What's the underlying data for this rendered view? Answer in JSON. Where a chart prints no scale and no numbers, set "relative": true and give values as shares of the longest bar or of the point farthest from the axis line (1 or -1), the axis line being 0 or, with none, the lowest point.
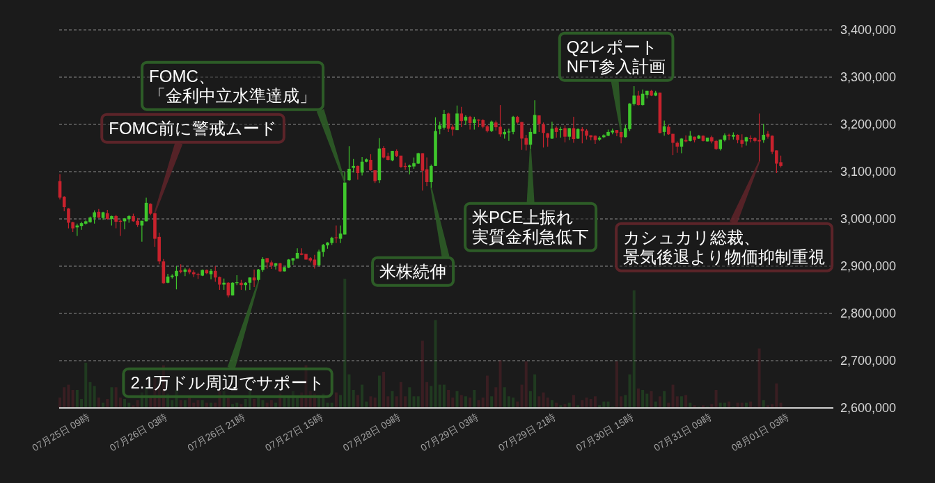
{
  "chart_data": [
    {
      "type": "candlestick",
      "x": [
        "--07-25T02:00",
        "--07-25T03:00",
        "--07-25T04:00",
        "--07-25T05:00",
        "--07-25T06:00",
        "--07-25T07:00",
        "--07-25T08:00",
        "--07-25T09:00",
        "--07-25T10:00",
        "--07-25T11:00",
        "--07-25T12:00",
        "--07-25T13:00",
        "--07-25T14:00",
        "--07-25T15:00",
        "--07-25T16:00",
        "--07-25T17:00",
        "--07-25T18:00",
        "--07-25T19:00",
        "--07-25T20:00",
        "--07-25T21:00",
        "--07-25T22:00",
        "--07-25T23:00",
        "--07-26T00:00",
        "--07-26T01:00",
        "--07-26T02:00",
        "--07-26T03:00",
        "--07-26T04:00",
        "--07-26T05:00",
        "--07-26T06:00",
        "--07-26T07:00",
        "--07-26T08:00",
        "--07-26T09:00",
        "--07-26T10:00",
        "--07-26T11:00",
        "--07-26T12:00",
        "--07-26T13:00",
        "--07-26T14:00",
        "--07-26T15:00",
        "--07-26T16:00",
        "--07-26T17:00",
        "--07-26T18:00",
        "--07-26T19:00",
        "--07-26T20:00",
        "--07-26T21:00",
        "--07-26T22:00",
        "--07-26T23:00",
        "--07-27T00:00",
        "--07-27T01:00",
        "--07-27T02:00",
        "--07-27T03:00",
        "--07-27T04:00",
        "--07-27T05:00",
        "--07-27T06:00",
        "--07-27T07:00",
        "--07-27T08:00",
        "--07-27T09:00",
        "--07-27T10:00",
        "--07-27T11:00",
        "--07-27T12:00",
        "--07-27T13:00",
        "--07-27T14:00",
        "--07-27T15:00",
        "--07-27T16:00",
        "--07-27T17:00",
        "--07-27T18:00",
        "--07-27T19:00",
        "--07-27T20:00",
        "--07-27T21:00",
        "--07-27T22:00",
        "--07-27T23:00",
        "--07-28T00:00",
        "--07-28T01:00",
        "--07-28T02:00",
        "--07-28T03:00",
        "--07-28T04:00",
        "--07-28T05:00",
        "--07-28T06:00",
        "--07-28T07:00",
        "--07-28T08:00",
        "--07-28T09:00",
        "--07-28T10:00",
        "--07-28T11:00",
        "--07-28T12:00",
        "--07-28T13:00",
        "--07-28T14:00",
        "--07-28T15:00",
        "--07-28T16:00",
        "--07-28T17:00",
        "--07-28T18:00",
        "--07-28T19:00",
        "--07-28T20:00",
        "--07-28T21:00",
        "--07-28T22:00",
        "--07-28T23:00",
        "--07-29T00:00",
        "--07-29T01:00",
        "--07-29T02:00",
        "--07-29T03:00",
        "--07-29T04:00",
        "--07-29T05:00",
        "--07-29T06:00",
        "--07-29T07:00",
        "--07-29T08:00",
        "--07-29T09:00",
        "--07-29T10:00",
        "--07-29T11:00",
        "--07-29T12:00",
        "--07-29T13:00",
        "--07-29T14:00",
        "--07-29T15:00",
        "--07-29T16:00",
        "--07-29T17:00",
        "--07-29T18:00",
        "--07-29T19:00",
        "--07-29T20:00",
        "--07-29T21:00",
        "--07-29T22:00",
        "--07-29T23:00",
        "--07-30T00:00",
        "--07-30T01:00",
        "--07-30T02:00",
        "--07-30T03:00",
        "--07-30T04:00",
        "--07-30T05:00",
        "--07-30T06:00",
        "--07-30T07:00",
        "--07-30T08:00",
        "--07-30T09:00",
        "--07-30T10:00",
        "--07-30T11:00",
        "--07-30T12:00",
        "--07-30T13:00",
        "--07-30T14:00",
        "--07-30T15:00",
        "--07-30T16:00",
        "--07-30T17:00",
        "--07-30T18:00",
        "--07-30T19:00",
        "--07-30T20:00",
        "--07-30T21:00",
        "--07-30T22:00",
        "--07-30T23:00",
        "--07-31T00:00",
        "--07-31T01:00",
        "--07-31T02:00",
        "--07-31T03:00",
        "--07-31T04:00",
        "--07-31T05:00",
        "--07-31T06:00",
        "--07-31T07:00",
        "--07-31T08:00",
        "--07-31T09:00",
        "--07-31T10:00",
        "--07-31T11:00",
        "--07-31T12:00",
        "--07-31T13:00",
        "--07-31T14:00",
        "--07-31T15:00",
        "--07-31T16:00",
        "--07-31T17:00",
        "--07-31T18:00",
        "--07-31T19:00",
        "--07-31T20:00",
        "--07-31T21:00",
        "--07-31T22:00",
        "--07-31T23:00",
        "--08-01T00:00",
        "--08-01T01:00"
      ],
      "ohlc": [
        [
          3080000,
          3095000,
          3041000,
          3045000
        ],
        [
          3047000,
          3048000,
          3016000,
          3025000
        ],
        [
          3022000,
          3023000,
          2980000,
          2992000
        ],
        [
          2993000,
          2994000,
          2972000,
          2980000
        ],
        [
          2982000,
          2990000,
          2964000,
          2986000
        ],
        [
          2985000,
          2994000,
          2977000,
          2991000
        ],
        [
          2990000,
          2997000,
          2988000,
          2995000
        ],
        [
          2993000,
          3005000,
          2992000,
          3003000
        ],
        [
          3003000,
          3018000,
          2990000,
          3014000
        ],
        [
          3015000,
          3021000,
          3002000,
          3003000
        ],
        [
          3002000,
          3015000,
          2998000,
          3014000
        ],
        [
          3012000,
          3019000,
          2998000,
          3000000
        ],
        [
          3000000,
          3007000,
          2986000,
          3006000
        ],
        [
          3006000,
          3009000,
          2980000,
          2994000
        ],
        [
          2996000,
          2998000,
          2964000,
          2994000
        ],
        [
          2995000,
          3002000,
          2978000,
          3001000
        ],
        [
          3000000,
          3008000,
          2992000,
          3006000
        ],
        [
          3006000,
          3011000,
          2994000,
          2995000
        ],
        [
          2996000,
          3002000,
          2983000,
          2987000
        ],
        [
          2986000,
          2996000,
          2952000,
          2996000
        ],
        [
          2995000,
          3045000,
          2995000,
          3034000
        ],
        [
          3032000,
          3033000,
          3008000,
          3011000
        ],
        [
          3012000,
          3013000,
          2941000,
          2958000
        ],
        [
          2962000,
          2971000,
          2904000,
          2910000
        ],
        [
          2910000,
          2915000,
          2863000,
          2864000
        ],
        [
          2865000,
          2884000,
          2864000,
          2878000
        ],
        [
          2877000,
          2883000,
          2874000,
          2880000
        ],
        [
          2879000,
          2900000,
          2851000,
          2890000
        ],
        [
          2891000,
          2904000,
          2885000,
          2888000
        ],
        [
          2888000,
          2896000,
          2879000,
          2893000
        ],
        [
          2893000,
          2896000,
          2883000,
          2887000
        ],
        [
          2887000,
          2891000,
          2877000,
          2883000
        ],
        [
          2883000,
          2886000,
          2873000,
          2882000
        ],
        [
          2880000,
          2893000,
          2879000,
          2892000
        ],
        [
          2892000,
          2893000,
          2883000,
          2885000
        ],
        [
          2883000,
          2894000,
          2872000,
          2890000
        ],
        [
          2890000,
          2900000,
          2867000,
          2876000
        ],
        [
          2877000,
          2878000,
          2850000,
          2861000
        ],
        [
          2861000,
          2874000,
          2850000,
          2865000
        ],
        [
          2865000,
          2866000,
          2834000,
          2838000
        ],
        [
          2838000,
          2866000,
          2838000,
          2865000
        ],
        [
          2865000,
          2881000,
          2860000,
          2866000
        ],
        [
          2865000,
          2871000,
          2850000,
          2860000
        ],
        [
          2860000,
          2866000,
          2849000,
          2865000
        ],
        [
          2865000,
          2876000,
          2850000,
          2876000
        ],
        [
          2876000,
          2893000,
          2856000,
          2870000
        ],
        [
          2871000,
          2894000,
          2868000,
          2893000
        ],
        [
          2892000,
          2919000,
          2888000,
          2915000
        ],
        [
          2917000,
          2917000,
          2895000,
          2908000
        ],
        [
          2908000,
          2912000,
          2894000,
          2901000
        ],
        [
          2901000,
          2907000,
          2893000,
          2906000
        ],
        [
          2906000,
          2907000,
          2888000,
          2889000
        ],
        [
          2889000,
          2898000,
          2889000,
          2898000
        ],
        [
          2897000,
          2915000,
          2896000,
          2914000
        ],
        [
          2912000,
          2917000,
          2903000,
          2917000
        ],
        [
          2916000,
          2938000,
          2916000,
          2928000
        ],
        [
          2927000,
          2938000,
          2923000,
          2924000
        ],
        [
          2926000,
          2926000,
          2914000,
          2914000
        ],
        [
          2917000,
          2919000,
          2908000,
          2912000
        ],
        [
          2914000,
          2924000,
          2895000,
          2902000
        ],
        [
          2902000,
          2935000,
          2900000,
          2931000
        ],
        [
          2930000,
          2947000,
          2920000,
          2945000
        ],
        [
          2944000,
          2951000,
          2937000,
          2950000
        ],
        [
          2949000,
          2962000,
          2945000,
          2960000
        ],
        [
          2961000,
          2986000,
          2949000,
          2960000
        ],
        [
          2958000,
          2986000,
          2949000,
          2969000
        ],
        [
          2967000,
          3100000,
          2967000,
          3077000
        ],
        [
          3082000,
          3154000,
          3081000,
          3106000
        ],
        [
          3108000,
          3127000,
          3098000,
          3112000
        ],
        [
          3112000,
          3113000,
          3083000,
          3097000
        ],
        [
          3098000,
          3131000,
          3092000,
          3121000
        ],
        [
          3121000,
          3128000,
          3120000,
          3126000
        ],
        [
          3125000,
          3137000,
          3102000,
          3103000
        ],
        [
          3103000,
          3103000,
          3076000,
          3080000
        ],
        [
          3082000,
          3171000,
          3076000,
          3149000
        ],
        [
          3150000,
          3154000,
          3128000,
          3130000
        ],
        [
          3133000,
          3140000,
          3124000,
          3125000
        ],
        [
          3124000,
          3144000,
          3122000,
          3144000
        ],
        [
          3144000,
          3147000,
          3131000,
          3133000
        ],
        [
          3134000,
          3134000,
          3108000,
          3110000
        ],
        [
          3112000,
          3119000,
          3104000,
          3110000
        ],
        [
          3110000,
          3115000,
          3094000,
          3113000
        ],
        [
          3111000,
          3130000,
          3106000,
          3118000
        ],
        [
          3117000,
          3140000,
          3116000,
          3139000
        ],
        [
          3139000,
          3139000,
          3060000,
          3102000
        ],
        [
          3105000,
          3130000,
          3069000,
          3078000
        ],
        [
          3078000,
          3115000,
          3066000,
          3112000
        ],
        [
          3112000,
          3215000,
          3112000,
          3186000
        ],
        [
          3190000,
          3206000,
          3179000,
          3198000
        ],
        [
          3193000,
          3231000,
          3189000,
          3222000
        ],
        [
          3223000,
          3225000,
          3184000,
          3191000
        ],
        [
          3195000,
          3200000,
          3176000,
          3189000
        ],
        [
          3188000,
          3240000,
          3188000,
          3223000
        ],
        [
          3223000,
          3237000,
          3194000,
          3207000
        ],
        [
          3208000,
          3219000,
          3199000,
          3216000
        ],
        [
          3216000,
          3218000,
          3189000,
          3203000
        ],
        [
          3203000,
          3216000,
          3189000,
          3211000
        ],
        [
          3210000,
          3211000,
          3194000,
          3208000
        ],
        [
          3209000,
          3211000,
          3192000,
          3195000
        ],
        [
          3196000,
          3199000,
          3183000,
          3186000
        ],
        [
          3186000,
          3208000,
          3184000,
          3206000
        ],
        [
          3204000,
          3208000,
          3187000,
          3194000
        ],
        [
          3195000,
          3241000,
          3174000,
          3179000
        ],
        [
          3179000,
          3190000,
          3170000,
          3184000
        ],
        [
          3183000,
          3191000,
          3165000,
          3185000
        ],
        [
          3184000,
          3218000,
          3179000,
          3216000
        ],
        [
          3216000,
          3218000,
          3202000,
          3204000
        ],
        [
          3205000,
          3205000,
          3146000,
          3170000
        ],
        [
          3171000,
          3178000,
          3145000,
          3157000
        ],
        [
          3157000,
          3192000,
          3148000,
          3184000
        ],
        [
          3180000,
          3251000,
          3180000,
          3220000
        ],
        [
          3219000,
          3219000,
          3184000,
          3201000
        ],
        [
          3200000,
          3204000,
          3151000,
          3182000
        ],
        [
          3181000,
          3182000,
          3153000,
          3172000
        ],
        [
          3170000,
          3206000,
          3169000,
          3191000
        ],
        [
          3193000,
          3196000,
          3172000,
          3184000
        ],
        [
          3188000,
          3195000,
          3172000,
          3190000
        ],
        [
          3192000,
          3198000,
          3162000,
          3174000
        ],
        [
          3174000,
          3192000,
          3167000,
          3192000
        ],
        [
          3192000,
          3216000,
          3161000,
          3169000
        ],
        [
          3170000,
          3192000,
          3169000,
          3190000
        ],
        [
          3190000,
          3194000,
          3160000,
          3186000
        ],
        [
          3187000,
          3190000,
          3168000,
          3176000
        ],
        [
          3177000,
          3177000,
          3166000,
          3173000
        ],
        [
          3176000,
          3177000,
          3159000,
          3167000
        ],
        [
          3168000,
          3175000,
          3165000,
          3172000
        ],
        [
          3173000,
          3179000,
          3171000,
          3177000
        ],
        [
          3176000,
          3189000,
          3175000,
          3184000
        ],
        [
          3183000,
          3191000,
          3179000,
          3187000
        ],
        [
          3188000,
          3188000,
          3175000,
          3182000
        ],
        [
          3184000,
          3184000,
          3160000,
          3173000
        ],
        [
          3173000,
          3199000,
          3172000,
          3192000
        ],
        [
          3190000,
          3245000,
          3186000,
          3244000
        ],
        [
          3243000,
          3281000,
          3240000,
          3261000
        ],
        [
          3261000,
          3271000,
          3240000,
          3241000
        ],
        [
          3241000,
          3274000,
          3240000,
          3265000
        ],
        [
          3262000,
          3271000,
          3255000,
          3271000
        ],
        [
          3271000,
          3273000,
          3260000,
          3261000
        ],
        [
          3261000,
          3271000,
          3260000,
          3267000
        ],
        [
          3267000,
          3267000,
          3181000,
          3182000
        ],
        [
          3184000,
          3208000,
          3176000,
          3196000
        ],
        [
          3195000,
          3199000,
          3178000,
          3179000
        ],
        [
          3180000,
          3180000,
          3135000,
          3161000
        ],
        [
          3161000,
          3164000,
          3140000,
          3153000
        ],
        [
          3153000,
          3171000,
          3139000,
          3170000
        ],
        [
          3167000,
          3177000,
          3162000,
          3164000
        ],
        [
          3165000,
          3186000,
          3164000,
          3176000
        ],
        [
          3174000,
          3174000,
          3162000,
          3167000
        ],
        [
          3170000,
          3178000,
          3169000,
          3176000
        ],
        [
          3176000,
          3177000,
          3164000,
          3165000
        ],
        [
          3164000,
          3172000,
          3164000,
          3172000
        ],
        [
          3173000,
          3176000,
          3160000,
          3164000
        ],
        [
          3165000,
          3167000,
          3146000,
          3148000
        ],
        [
          3148000,
          3168000,
          3145000,
          3168000
        ],
        [
          3167000,
          3181000,
          3164000,
          3177000
        ],
        [
          3178000,
          3180000,
          3167000,
          3176000
        ],
        [
          3174000,
          3183000,
          3168000,
          3178000
        ],
        [
          3178000,
          3179000,
          3160000,
          3167000
        ],
        [
          3167000,
          3179000,
          3151000,
          3159000
        ],
        [
          3164000,
          3174000,
          3155000,
          3173000
        ],
        [
          3171000,
          3177000,
          3162000,
          3170000
        ],
        [
          3171000,
          3173000,
          3162000,
          3165000
        ],
        [
          3167000,
          3223000,
          3121000,
          3164000
        ],
        [
          3167000,
          3201000,
          3161000,
          3178000
        ],
        [
          3180000,
          3186000,
          3170000,
          3174000
        ],
        [
          3176000,
          3177000,
          3137000,
          3142000
        ],
        [
          3145000,
          3145000,
          3097000,
          3117000
        ],
        [
          3120000,
          3134000,
          3109000,
          3112000
        ]
      ],
      "colors": [
        "#c8222d",
        "#c8222d",
        "#c8222d",
        "#c8222d",
        "#3fc72c",
        "#3fc72c",
        "#3fc72c",
        "#3fc72c",
        "#3fc72c",
        "#c8222d",
        "#3fc72c",
        "#c8222d",
        "#3fc72c",
        "#c8222d",
        "#c8222d",
        "#3fc72c",
        "#3fc72c",
        "#c8222d",
        "#c8222d",
        "#3fc72c",
        "#3fc72c",
        "#c8222d",
        "#c8222d",
        "#c8222d",
        "#c8222d",
        "#3fc72c",
        "#3fc72c",
        "#3fc72c",
        "#c8222d",
        "#3fc72c",
        "#c8222d",
        "#c8222d",
        "#c8222d",
        "#3fc72c",
        "#c8222d",
        "#3fc72c",
        "#c8222d",
        "#c8222d",
        "#3fc72c",
        "#c8222d",
        "#3fc72c",
        "#3fc72c",
        "#c8222d",
        "#3fc72c",
        "#3fc72c",
        "#c8222d",
        "#3fc72c",
        "#3fc72c",
        "#c8222d",
        "#c8222d",
        "#3fc72c",
        "#c8222d",
        "#3fc72c",
        "#3fc72c",
        "#3fc72c",
        "#3fc72c",
        "#c8222d",
        "#c8222d",
        "#c8222d",
        "#c8222d",
        "#3fc72c",
        "#3fc72c",
        "#3fc72c",
        "#3fc72c",
        "#c8222d",
        "#3fc72c",
        "#3fc72c",
        "#3fc72c",
        "#3fc72c",
        "#c8222d",
        "#3fc72c",
        "#3fc72c",
        "#c8222d",
        "#c8222d",
        "#3fc72c",
        "#c8222d",
        "#c8222d",
        "#3fc72c",
        "#c8222d",
        "#c8222d",
        "#c8222d",
        "#3fc72c",
        "#3fc72c",
        "#3fc72c",
        "#c8222d",
        "#c8222d",
        "#3fc72c",
        "#3fc72c",
        "#3fc72c",
        "#3fc72c",
        "#c8222d",
        "#c8222d",
        "#3fc72c",
        "#c8222d",
        "#3fc72c",
        "#c8222d",
        "#3fc72c",
        "#c8222d",
        "#c8222d",
        "#c8222d",
        "#3fc72c",
        "#c8222d",
        "#c8222d",
        "#3fc72c",
        "#3fc72c",
        "#3fc72c",
        "#c8222d",
        "#c8222d",
        "#c8222d",
        "#3fc72c",
        "#3fc72c",
        "#c8222d",
        "#c8222d",
        "#c8222d",
        "#3fc72c",
        "#c8222d",
        "#3fc72c",
        "#c8222d",
        "#3fc72c",
        "#c8222d",
        "#3fc72c",
        "#c8222d",
        "#c8222d",
        "#c8222d",
        "#c8222d",
        "#3fc72c",
        "#3fc72c",
        "#3fc72c",
        "#3fc72c",
        "#c8222d",
        "#c8222d",
        "#3fc72c",
        "#3fc72c",
        "#3fc72c",
        "#c8222d",
        "#3fc72c",
        "#3fc72c",
        "#c8222d",
        "#3fc72c",
        "#c8222d",
        "#3fc72c",
        "#c8222d",
        "#c8222d",
        "#c8222d",
        "#3fc72c",
        "#c8222d",
        "#3fc72c",
        "#c8222d",
        "#3fc72c",
        "#c8222d",
        "#3fc72c",
        "#c8222d",
        "#c8222d",
        "#3fc72c",
        "#3fc72c",
        "#c8222d",
        "#3fc72c",
        "#c8222d",
        "#c8222d",
        "#3fc72c",
        "#c8222d",
        "#c8222d",
        "#c8222d",
        "#3fc72c",
        "#c8222d",
        "#c8222d",
        "#c8222d",
        "#c8222d"
      ],
      "xlim": [
        "--07-25T01:50",
        "--08-01T13:10"
      ],
      "xticks": [
        {
          "value": "--07-25T09:00",
          "label": "07月25日 09時"
        },
        {
          "value": "--07-26T03:00",
          "label": "07月26日 03時"
        },
        {
          "value": "--07-26T21:00",
          "label": "07月26日 21時"
        },
        {
          "value": "--07-27T15:00",
          "label": "07月27日 15時"
        },
        {
          "value": "--07-28T09:00",
          "label": "07月28日 09時"
        },
        {
          "value": "--07-29T03:00",
          "label": "07月29日 03時"
        },
        {
          "value": "--07-29T21:00",
          "label": "07月29日 21時"
        },
        {
          "value": "--07-30T15:00",
          "label": "07月30日 15時"
        },
        {
          "value": "--07-31T09:00",
          "label": "07月31日 09時"
        },
        {
          "value": "--08-01T03:00",
          "label": "08月01日 03時"
        }
      ],
      "ylim": [
        2600000,
        3400000
      ],
      "yticks": [
        {
          "value": 2600000,
          "label": "2,600,000"
        },
        {
          "value": 2700000,
          "label": "2,700,000"
        },
        {
          "value": 2800000,
          "label": "2,800,000"
        },
        {
          "value": 2900000,
          "label": "2,900,000"
        },
        {
          "value": 3000000,
          "label": "3,000,000"
        },
        {
          "value": 3100000,
          "label": "3,100,000"
        },
        {
          "value": 3200000,
          "label": "3,200,000"
        },
        {
          "value": 3300000,
          "label": "3,300,000"
        },
        {
          "value": 3400000,
          "label": "3,400,000"
        }
      ],
      "grid": "y",
      "annotations": [
        {
          "text": "FOMC前に警戒ムード",
          "x": "--07-26T00:00",
          "y": 3013000
        },
        {
          "text": "2.1万ドル周辺でサポート",
          "x": "--07-27T00:00",
          "y": 2868000
        },
        {
          "text": "FOMC、「金利中立水準達成」",
          "x": "--07-27T20:00",
          "y": 3077000
        },
        {
          "text": "米株続伸",
          "x": "--07-28T16:00",
          "y": 3066000
        },
        {
          "text": "米PCE上振れ実質金利急低下",
          "x": "--07-29T15:00",
          "y": 3148000
        },
        {
          "text": "Q2レポートNFT参入計画",
          "x": "--07-30T12:00",
          "y": 3184000
        },
        {
          "text": "カシュカリ総裁、景気後退より物価抑制重視",
          "x": "--07-31T20:00",
          "y": 3121000
        }
      ]
    },
    {
      "type": "bar",
      "relative": true,
      "x": [
        "--07-25T02:00",
        "--07-25T03:00",
        "--07-25T04:00",
        "--07-25T05:00",
        "--07-25T06:00",
        "--07-25T07:00",
        "--07-25T08:00",
        "--07-25T09:00",
        "--07-25T10:00",
        "--07-25T11:00",
        "--07-25T12:00",
        "--07-25T13:00",
        "--07-25T14:00",
        "--07-25T15:00",
        "--07-25T16:00",
        "--07-25T17:00",
        "--07-25T18:00",
        "--07-25T19:00",
        "--07-25T20:00",
        "--07-25T21:00",
        "--07-25T22:00",
        "--07-25T23:00",
        "--07-26T00:00",
        "--07-26T01:00",
        "--07-26T02:00",
        "--07-26T03:00",
        "--07-26T04:00",
        "--07-26T05:00",
        "--07-26T06:00",
        "--07-26T07:00",
        "--07-26T08:00",
        "--07-26T09:00",
        "--07-26T10:00",
        "--07-26T11:00",
        "--07-26T12:00",
        "--07-26T13:00",
        "--07-26T14:00",
        "--07-26T15:00",
        "--07-26T16:00",
        "--07-26T17:00",
        "--07-26T18:00",
        "--07-26T19:00",
        "--07-26T20:00",
        "--07-26T21:00",
        "--07-26T22:00",
        "--07-26T23:00",
        "--07-27T00:00",
        "--07-27T01:00",
        "--07-27T02:00",
        "--07-27T03:00",
        "--07-27T04:00",
        "--07-27T05:00",
        "--07-27T06:00",
        "--07-27T07:00",
        "--07-27T08:00",
        "--07-27T09:00",
        "--07-27T10:00",
        "--07-27T11:00",
        "--07-27T12:00",
        "--07-27T13:00",
        "--07-27T14:00",
        "--07-27T15:00",
        "--07-27T16:00",
        "--07-27T17:00",
        "--07-27T18:00",
        "--07-27T19:00",
        "--07-27T20:00",
        "--07-27T21:00",
        "--07-27T22:00",
        "--07-27T23:00",
        "--07-28T00:00",
        "--07-28T01:00",
        "--07-28T02:00",
        "--07-28T03:00",
        "--07-28T04:00",
        "--07-28T05:00",
        "--07-28T06:00",
        "--07-28T07:00",
        "--07-28T08:00",
        "--07-28T09:00",
        "--07-28T10:00",
        "--07-28T11:00",
        "--07-28T12:00",
        "--07-28T13:00",
        "--07-28T14:00",
        "--07-28T15:00",
        "--07-28T16:00",
        "--07-28T17:00",
        "--07-28T18:00",
        "--07-28T19:00",
        "--07-28T20:00",
        "--07-28T21:00",
        "--07-28T22:00",
        "--07-28T23:00",
        "--07-29T00:00",
        "--07-29T01:00",
        "--07-29T02:00",
        "--07-29T03:00",
        "--07-29T04:00",
        "--07-29T05:00",
        "--07-29T06:00",
        "--07-29T07:00",
        "--07-29T08:00",
        "--07-29T09:00",
        "--07-29T10:00",
        "--07-29T11:00",
        "--07-29T12:00",
        "--07-29T13:00",
        "--07-29T14:00",
        "--07-29T15:00",
        "--07-29T16:00",
        "--07-29T17:00",
        "--07-29T18:00",
        "--07-29T19:00",
        "--07-29T20:00",
        "--07-29T21:00",
        "--07-29T22:00",
        "--07-29T23:00",
        "--07-30T00:00",
        "--07-30T01:00",
        "--07-30T02:00",
        "--07-30T03:00",
        "--07-30T04:00",
        "--07-30T05:00",
        "--07-30T06:00",
        "--07-30T07:00",
        "--07-30T08:00",
        "--07-30T09:00",
        "--07-30T10:00",
        "--07-30T11:00",
        "--07-30T12:00",
        "--07-30T13:00",
        "--07-30T14:00",
        "--07-30T15:00",
        "--07-30T16:00",
        "--07-30T17:00",
        "--07-30T18:00",
        "--07-30T19:00",
        "--07-30T20:00",
        "--07-30T21:00",
        "--07-30T22:00",
        "--07-30T23:00",
        "--07-31T00:00",
        "--07-31T01:00",
        "--07-31T02:00",
        "--07-31T03:00",
        "--07-31T04:00",
        "--07-31T05:00",
        "--07-31T06:00",
        "--07-31T07:00",
        "--07-31T08:00",
        "--07-31T09:00",
        "--07-31T10:00",
        "--07-31T11:00",
        "--07-31T12:00",
        "--07-31T13:00",
        "--07-31T14:00",
        "--07-31T15:00",
        "--07-31T16:00",
        "--07-31T17:00",
        "--07-31T18:00",
        "--07-31T19:00",
        "--07-31T20:00",
        "--07-31T21:00",
        "--07-31T22:00",
        "--07-31T23:00",
        "--08-01T00:00",
        "--08-01T01:00"
      ],
      "xlim": [
        "--07-25T01:50",
        "--08-01T13:10"
      ],
      "values": [
        0.08,
        0.16,
        0.18,
        0.14,
        0.14,
        0.07,
        0.35,
        0.2,
        0.17,
        0.08,
        0.04,
        0.07,
        0.16,
        0.16,
        0.08,
        0.07,
        0.04,
        0.02,
        0.06,
        0.12,
        0.16,
        0.09,
        0.23,
        0.18,
        0.33,
        0.11,
        0.06,
        0.14,
        0.06,
        0.06,
        0.09,
        0.04,
        0.06,
        0.06,
        0.04,
        0.04,
        0.04,
        0.13,
        0.13,
        0.09,
        0.03,
        0.04,
        0.03,
        0.07,
        0.13,
        0.07,
        0.08,
        0.06,
        0.04,
        0.06,
        0.04,
        0.11,
        0.08,
        0.09,
        0.13,
        0.09,
        0.12,
        0.33,
        0.13,
        0.11,
        0.1,
        0.11,
        0.04,
        0.04,
        0.12,
        0.1,
        1,
        0.26,
        0.14,
        0.1,
        0.18,
        0.05,
        0.09,
        0.08,
        0.25,
        0.28,
        0.09,
        0.13,
        0.09,
        0.2,
        0.09,
        0.16,
        0.09,
        0.09,
        0.52,
        0.2,
        0.17,
        0.68,
        0.18,
        0.18,
        0.14,
        0.08,
        0.13,
        0.1,
        0.09,
        0.08,
        0.14,
        0.06,
        0.08,
        0.25,
        0.09,
        0.16,
        0.37,
        0.16,
        0.09,
        0.08,
        0.05,
        0.18,
        0.36,
        0.13,
        0.26,
        0.09,
        0.12,
        0.08,
        0.06,
        0.04,
        0.02,
        0.03,
        0.04,
        0.1,
        0.02,
        0.06,
        0.08,
        0.07,
        0.09,
        0.02,
        0.05,
        0.05,
        0.01,
        0.36,
        0.09,
        0.1,
        0.26,
        0.91,
        0.15,
        0.14,
        0.11,
        0.13,
        0.05,
        0.09,
        0.13,
        0.04,
        0.18,
        0.09,
        0.09,
        0.1,
        0.04,
        0.02,
        0.01,
        0.02,
        0.01,
        0.03,
        0.14,
        0.04,
        0.04,
        0.05,
        0.01,
        0.04,
        0.04,
        0.04,
        0.05,
        0.01,
        0.46,
        0.06,
        0.02,
        0.03,
        0.19,
        0.04
      ],
      "colors": [
        "#3a1e22",
        "#3a1e22",
        "#3a1e22",
        "#3a1e22",
        "#203a20",
        "#203a20",
        "#203a20",
        "#203a20",
        "#203a20",
        "#3a1e22",
        "#203a20",
        "#3a1e22",
        "#203a20",
        "#3a1e22",
        "#3a1e22",
        "#203a20",
        "#203a20",
        "#3a1e22",
        "#3a1e22",
        "#203a20",
        "#203a20",
        "#3a1e22",
        "#3a1e22",
        "#3a1e22",
        "#3a1e22",
        "#203a20",
        "#203a20",
        "#203a20",
        "#3a1e22",
        "#203a20",
        "#3a1e22",
        "#3a1e22",
        "#3a1e22",
        "#203a20",
        "#3a1e22",
        "#203a20",
        "#3a1e22",
        "#3a1e22",
        "#203a20",
        "#3a1e22",
        "#203a20",
        "#203a20",
        "#3a1e22",
        "#203a20",
        "#203a20",
        "#3a1e22",
        "#203a20",
        "#203a20",
        "#3a1e22",
        "#3a1e22",
        "#203a20",
        "#3a1e22",
        "#203a20",
        "#203a20",
        "#203a20",
        "#203a20",
        "#3a1e22",
        "#3a1e22",
        "#3a1e22",
        "#3a1e22",
        "#203a20",
        "#203a20",
        "#203a20",
        "#203a20",
        "#3a1e22",
        "#203a20",
        "#203a20",
        "#203a20",
        "#203a20",
        "#3a1e22",
        "#203a20",
        "#203a20",
        "#3a1e22",
        "#3a1e22",
        "#203a20",
        "#3a1e22",
        "#3a1e22",
        "#203a20",
        "#3a1e22",
        "#3a1e22",
        "#3a1e22",
        "#203a20",
        "#203a20",
        "#203a20",
        "#3a1e22",
        "#3a1e22",
        "#203a20",
        "#203a20",
        "#203a20",
        "#203a20",
        "#3a1e22",
        "#3a1e22",
        "#203a20",
        "#3a1e22",
        "#203a20",
        "#3a1e22",
        "#203a20",
        "#3a1e22",
        "#3a1e22",
        "#3a1e22",
        "#203a20",
        "#3a1e22",
        "#3a1e22",
        "#203a20",
        "#203a20",
        "#203a20",
        "#3a1e22",
        "#3a1e22",
        "#3a1e22",
        "#203a20",
        "#203a20",
        "#3a1e22",
        "#3a1e22",
        "#3a1e22",
        "#203a20",
        "#3a1e22",
        "#203a20",
        "#3a1e22",
        "#203a20",
        "#3a1e22",
        "#203a20",
        "#3a1e22",
        "#3a1e22",
        "#3a1e22",
        "#3a1e22",
        "#203a20",
        "#203a20",
        "#203a20",
        "#203a20",
        "#3a1e22",
        "#3a1e22",
        "#203a20",
        "#203a20",
        "#203a20",
        "#3a1e22",
        "#203a20",
        "#203a20",
        "#3a1e22",
        "#203a20",
        "#3a1e22",
        "#203a20",
        "#3a1e22",
        "#3a1e22",
        "#3a1e22",
        "#203a20",
        "#3a1e22",
        "#203a20",
        "#3a1e22",
        "#203a20",
        "#3a1e22",
        "#203a20",
        "#3a1e22",
        "#3a1e22",
        "#203a20",
        "#203a20",
        "#3a1e22",
        "#203a20",
        "#3a1e22",
        "#3a1e22",
        "#203a20",
        "#3a1e22",
        "#3a1e22",
        "#3a1e22",
        "#203a20",
        "#3a1e22",
        "#3a1e22",
        "#3a1e22",
        "#3a1e22"
      ]
    }
  ]
}
